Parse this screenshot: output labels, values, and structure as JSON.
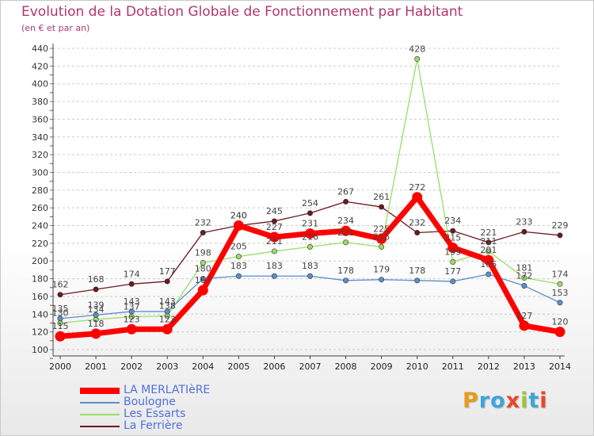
{
  "title": "Evolution de la Dotation Globale de Fonctionnement par Habitant",
  "subtitle": "(en € et par an)",
  "brand": {
    "letters": [
      "P",
      "r",
      "o",
      "x",
      "i",
      "t",
      "i"
    ],
    "colors": [
      "#e89a1a",
      "#3aa6dc",
      "#3aa6dc",
      "#e8462a",
      "#9bc53d",
      "#3aa6dc",
      "#e8462a"
    ]
  },
  "chart_data": {
    "type": "line",
    "x": [
      "2000",
      "2001",
      "2002",
      "2003",
      "2004",
      "2005",
      "2006",
      "2007",
      "2008",
      "2009",
      "2010",
      "2011",
      "2012",
      "2013",
      "2014"
    ],
    "ylim": [
      100,
      440
    ],
    "yticks": [
      "100",
      "120",
      "140",
      "160",
      "180",
      "200",
      "220",
      "240",
      "260",
      "280",
      "300",
      "320",
      "340",
      "360",
      "380",
      "400",
      "420",
      "440"
    ],
    "grid": "horizontal dashed",
    "legend_position": "bottom-left",
    "series": [
      {
        "name": "La Ferrière",
        "color": "#6b1a1e",
        "width": 1.3,
        "values": [
          162,
          168,
          174,
          177,
          232,
          240,
          245,
          254,
          267,
          261,
          232,
          234,
          221,
          233,
          229
        ],
        "labels": [
          "162",
          "168",
          "174",
          "177",
          "232",
          "240",
          "245",
          "254",
          "267",
          "261",
          "232",
          "234",
          "221",
          "233",
          "229"
        ]
      },
      {
        "name": "Les Essarts",
        "color": "#99dd66",
        "width": 1.3,
        "values": [
          130,
          134,
          137,
          138,
          198,
          205,
          211,
          216,
          221,
          216,
          428,
          199,
          211,
          181,
          174
        ],
        "labels": [
          "130",
          "134",
          "137",
          "138",
          "198",
          "205",
          "211",
          "216",
          "221",
          "216",
          "428",
          "199",
          "211",
          "181",
          "174"
        ]
      },
      {
        "name": "Boulogne",
        "color": "#5b8fc8",
        "width": 1.3,
        "values": [
          135,
          139,
          143,
          143,
          180,
          183,
          183,
          183,
          178,
          179,
          178,
          177,
          185,
          172,
          153
        ],
        "labels": [
          "135",
          "139",
          "143",
          "143",
          "180",
          "183",
          "183",
          "183",
          "178",
          "179",
          "178",
          "177",
          "185",
          "172",
          "153"
        ]
      },
      {
        "name": "LA MERLATIèRE",
        "color": "#ff0000",
        "width": 7,
        "values": [
          115,
          118,
          123,
          123,
          167,
          240,
          227,
          231,
          234,
          225,
          272,
          215,
          201,
          127,
          120
        ],
        "labels": [
          "115",
          "118",
          "123",
          "123",
          "167",
          "240",
          "227",
          "231",
          "234",
          "225",
          "272",
          "215",
          "201",
          "127",
          "120"
        ]
      }
    ]
  }
}
